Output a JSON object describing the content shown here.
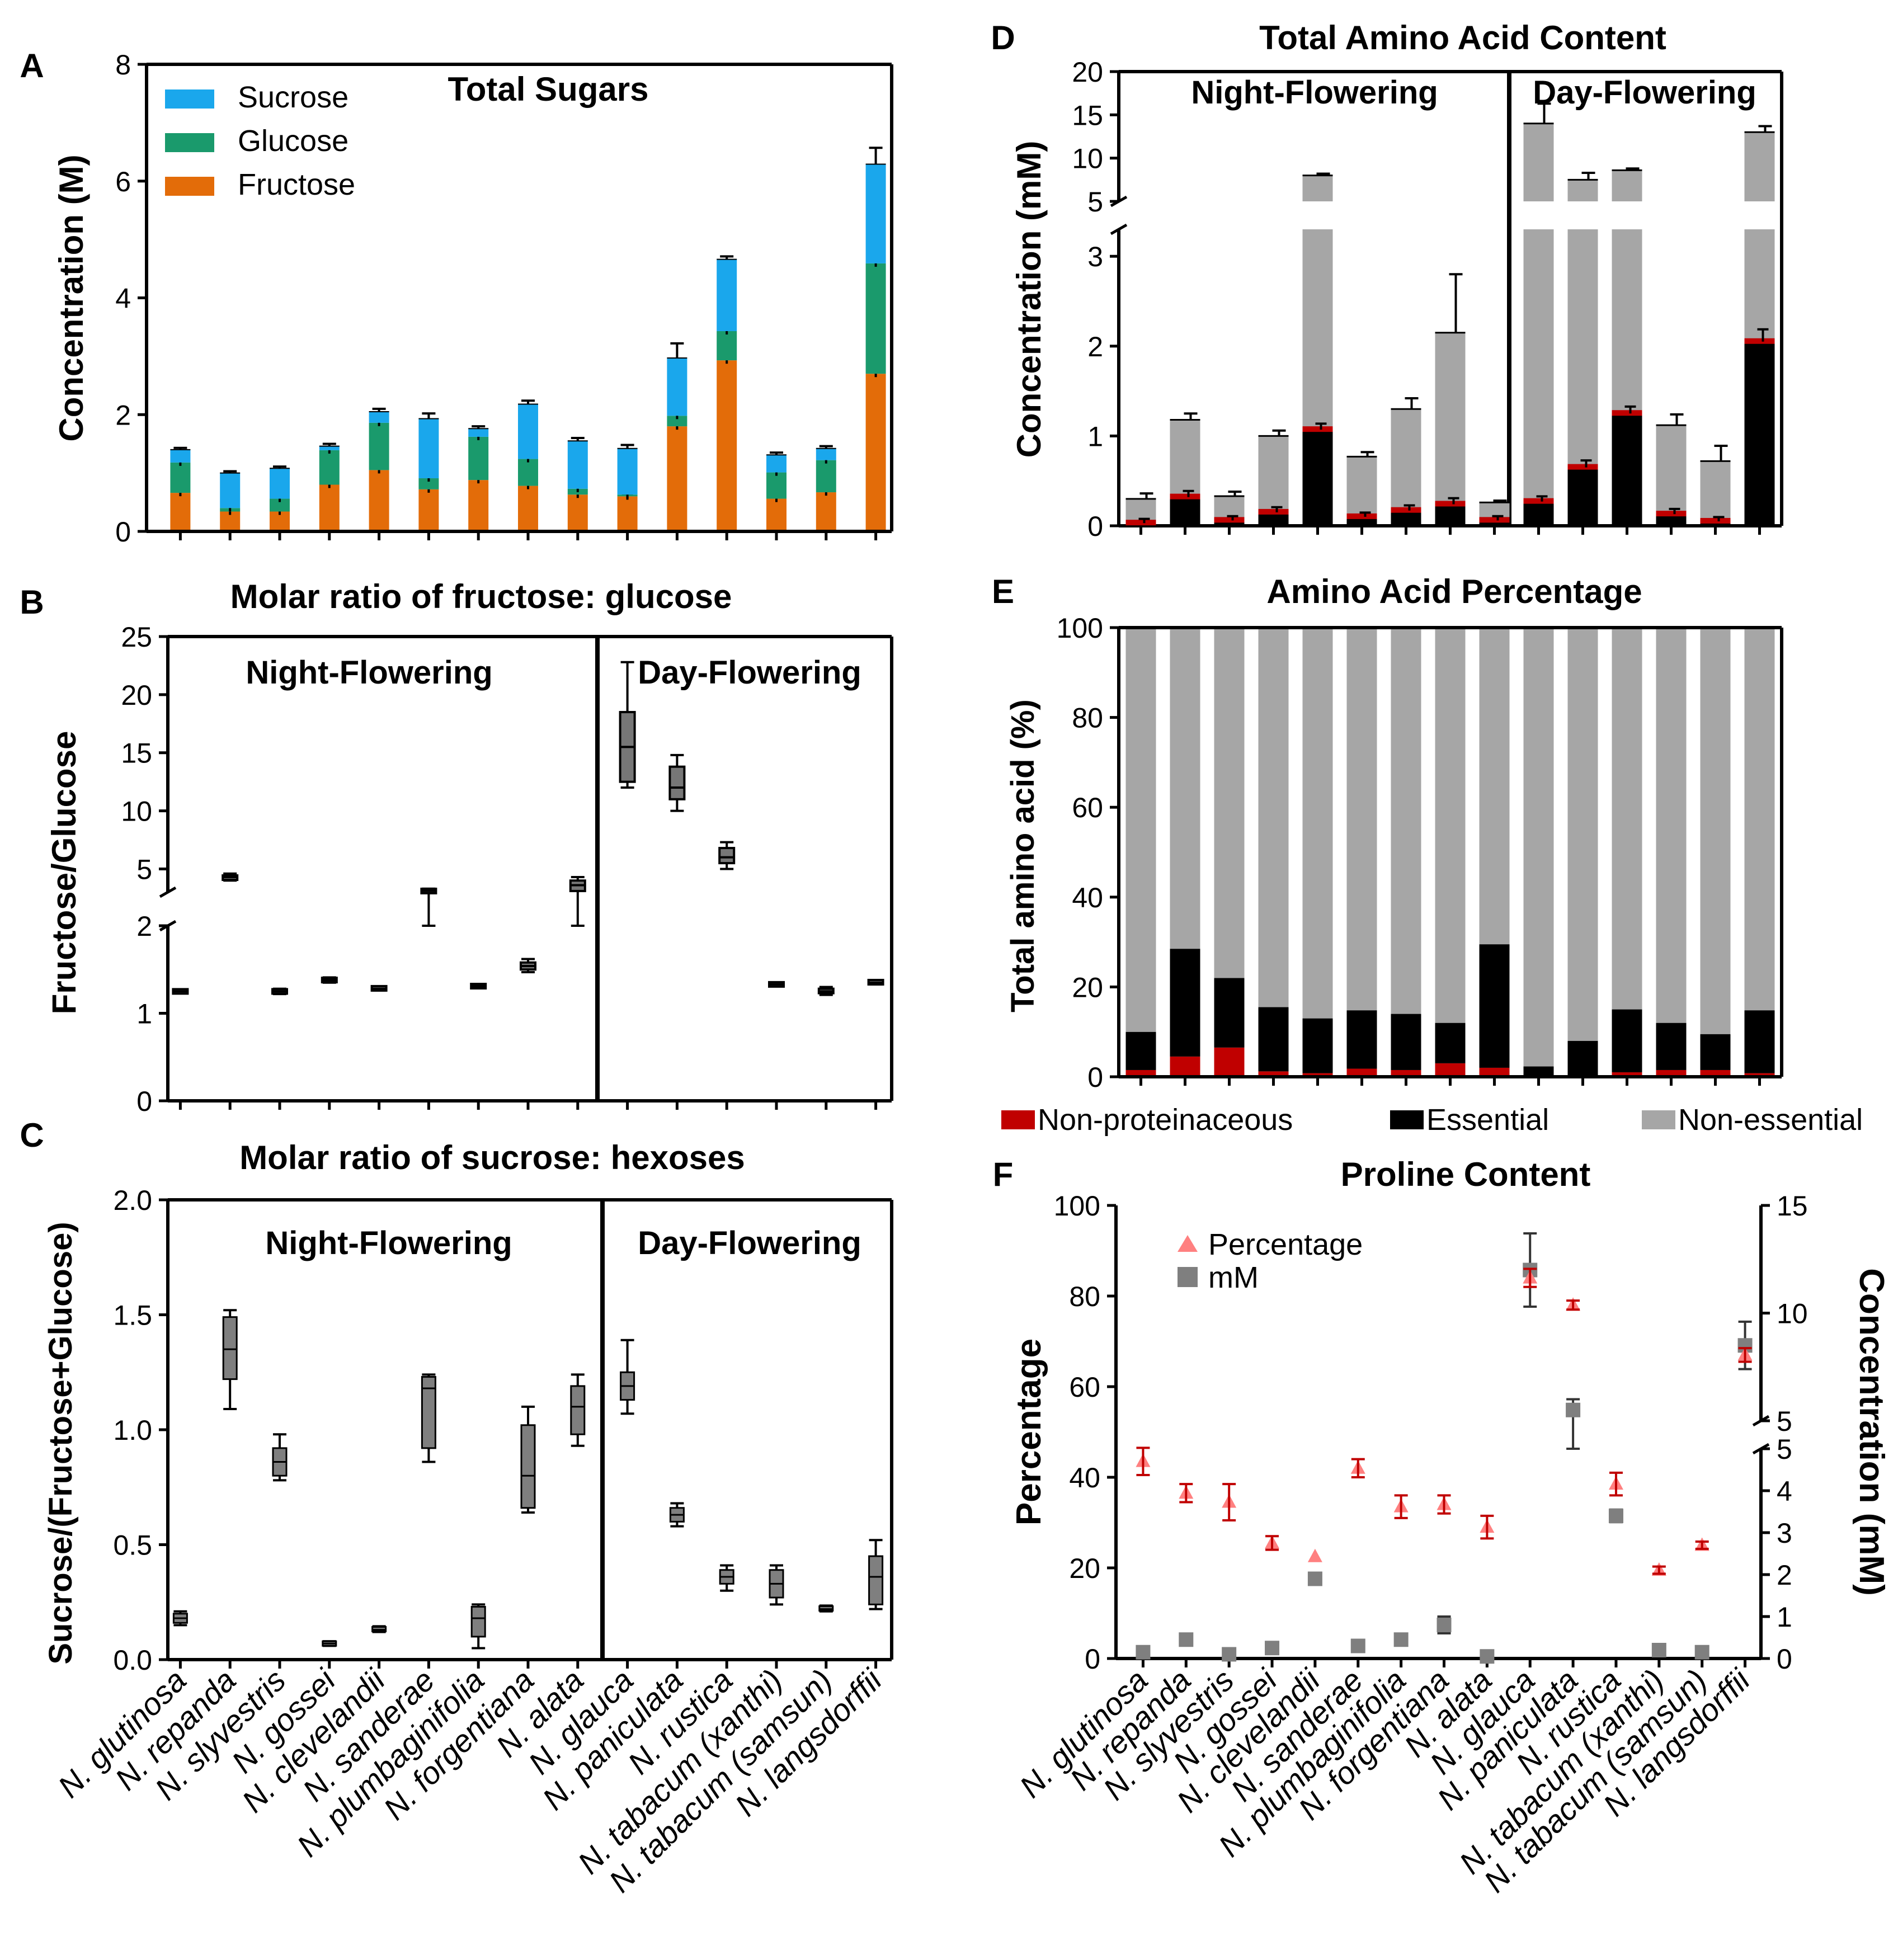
{
  "species": [
    "N. glutinosa",
    "N. repanda",
    "N. slyvestris",
    "N. gossei",
    "N. clevelandii",
    "N. sanderae",
    "N. plumbaginifolia",
    "N. forgentiana",
    "N. alata",
    "N. glauca",
    "N. paniculata",
    "N. rustica",
    "N. tabacum (xanthi)",
    "N. tabacum (samsun)",
    "N. langsdorffii"
  ],
  "groups": {
    "night": "Night-Flowering",
    "day": "Day-Flowering"
  },
  "colors": {
    "sucrose": "#1aa7ec",
    "glucose": "#1a9a6c",
    "fructose": "#e36c09",
    "nonprot": "#c00000",
    "essential": "#000000",
    "nonessential": "#a6a6a6",
    "percentage_marker": "#ff8080",
    "mm_marker": "#7f7f7f"
  },
  "chart_data": [
    {
      "panel": "A",
      "type": "bar",
      "stacked": true,
      "title": "Total Sugars",
      "ylabel": "Concentration (M)",
      "ylim": [
        0,
        8
      ],
      "yticks": [
        "0",
        "2",
        "4",
        "6",
        "8"
      ],
      "legend": [
        "Sucrose",
        "Glucose",
        "Fructose"
      ],
      "legend_position": "top-left",
      "series": [
        {
          "name": "Fructose",
          "values": [
            0.66,
            0.34,
            0.34,
            0.8,
            1.05,
            0.72,
            0.88,
            0.78,
            0.63,
            0.6,
            1.8,
            2.93,
            0.56,
            0.67,
            2.7
          ]
        },
        {
          "name": "Glucose",
          "values": [
            0.52,
            0.06,
            0.22,
            0.59,
            0.81,
            0.19,
            0.74,
            0.46,
            0.1,
            0.03,
            0.18,
            0.5,
            0.45,
            0.55,
            1.89
          ]
        },
        {
          "name": "Sucrose",
          "values": [
            0.22,
            0.6,
            0.52,
            0.07,
            0.19,
            1.02,
            0.14,
            0.94,
            0.82,
            0.79,
            0.99,
            1.23,
            0.3,
            0.2,
            1.7
          ]
        }
      ],
      "errors": [
        0.03,
        0.03,
        0.03,
        0.04,
        0.05,
        0.09,
        0.04,
        0.06,
        0.05,
        0.06,
        0.25,
        0.05,
        0.04,
        0.04,
        0.28
      ]
    },
    {
      "panel": "B",
      "type": "box",
      "title": "Molar ratio of fructose: glucose",
      "ylabel": "Fructose/Glucose",
      "ylim": [
        0,
        25
      ],
      "broken_axis": {
        "lower": [
          0,
          2
        ],
        "upper": [
          3,
          25
        ]
      },
      "yticks": [
        "0",
        "1",
        "2",
        "5",
        "10",
        "15",
        "20",
        "25"
      ],
      "boxes": [
        {
          "min": 1.23,
          "q1": 1.24,
          "median": 1.25,
          "q3": 1.26,
          "max": 1.27
        },
        {
          "min": 4.0,
          "q1": 4.1,
          "median": 4.3,
          "q3": 4.4,
          "max": 4.6
        },
        {
          "min": 1.22,
          "q1": 1.23,
          "median": 1.25,
          "q3": 1.27,
          "max": 1.28
        },
        {
          "min": 1.35,
          "q1": 1.36,
          "median": 1.38,
          "q3": 1.4,
          "max": 1.41
        },
        {
          "min": 1.26,
          "q1": 1.27,
          "median": 1.28,
          "q3": 1.3,
          "max": 1.31
        },
        {
          "min": 2.9,
          "q1": 3.0,
          "median": 3.1,
          "q3": 3.2,
          "max": 3.3
        },
        {
          "min": 1.29,
          "q1": 1.3,
          "median": 1.31,
          "q3": 1.32,
          "max": 1.33
        },
        {
          "min": 1.47,
          "q1": 1.5,
          "median": 1.54,
          "q3": 1.58,
          "max": 1.62
        },
        {
          "min": 2.9,
          "q1": 3.1,
          "median": 3.6,
          "q3": 4.0,
          "max": 4.3
        },
        {
          "min": 12.0,
          "q1": 12.5,
          "median": 15.5,
          "q3": 18.5,
          "max": 22.8
        },
        {
          "min": 10.0,
          "q1": 11.0,
          "median": 12.0,
          "q3": 13.8,
          "max": 14.8
        },
        {
          "min": 5.0,
          "q1": 5.5,
          "median": 6.0,
          "q3": 6.8,
          "max": 7.3
        },
        {
          "min": 1.31,
          "q1": 1.32,
          "median": 1.33,
          "q3": 1.34,
          "max": 1.35
        },
        {
          "min": 1.21,
          "q1": 1.23,
          "median": 1.25,
          "q3": 1.28,
          "max": 1.3
        },
        {
          "min": 1.33,
          "q1": 1.34,
          "median": 1.35,
          "q3": 1.37,
          "max": 1.38
        }
      ]
    },
    {
      "panel": "C",
      "type": "box",
      "title": "Molar ratio of sucrose: hexoses",
      "ylabel": "Sucrose/(Fructose+Glucose)",
      "ylim": [
        0,
        2.0
      ],
      "yticks": [
        "0.0",
        "0.5",
        "1.0",
        "1.5",
        "2.0"
      ],
      "boxes": [
        {
          "min": 0.15,
          "q1": 0.16,
          "median": 0.18,
          "q3": 0.2,
          "max": 0.21
        },
        {
          "min": 1.09,
          "q1": 1.22,
          "median": 1.35,
          "q3": 1.49,
          "max": 1.52
        },
        {
          "min": 0.78,
          "q1": 0.8,
          "median": 0.86,
          "q3": 0.92,
          "max": 0.98
        },
        {
          "min": 0.06,
          "q1": 0.065,
          "median": 0.07,
          "q3": 0.075,
          "max": 0.08
        },
        {
          "min": 0.12,
          "q1": 0.125,
          "median": 0.13,
          "q3": 0.14,
          "max": 0.145
        },
        {
          "min": 0.86,
          "q1": 0.92,
          "median": 1.18,
          "q3": 1.23,
          "max": 1.24
        },
        {
          "min": 0.05,
          "q1": 0.1,
          "median": 0.18,
          "q3": 0.23,
          "max": 0.24
        },
        {
          "min": 0.64,
          "q1": 0.66,
          "median": 0.8,
          "q3": 1.02,
          "max": 1.1
        },
        {
          "min": 0.93,
          "q1": 0.98,
          "median": 1.1,
          "q3": 1.19,
          "max": 1.24
        },
        {
          "min": 1.07,
          "q1": 1.13,
          "median": 1.19,
          "q3": 1.25,
          "max": 1.39
        },
        {
          "min": 0.58,
          "q1": 0.6,
          "median": 0.63,
          "q3": 0.66,
          "max": 0.68
        },
        {
          "min": 0.3,
          "q1": 0.33,
          "median": 0.36,
          "q3": 0.39,
          "max": 0.41
        },
        {
          "min": 0.24,
          "q1": 0.27,
          "median": 0.33,
          "q3": 0.39,
          "max": 0.41
        },
        {
          "min": 0.21,
          "q1": 0.215,
          "median": 0.22,
          "q3": 0.23,
          "max": 0.235
        },
        {
          "min": 0.22,
          "q1": 0.24,
          "median": 0.36,
          "q3": 0.45,
          "max": 0.52
        }
      ]
    },
    {
      "panel": "D",
      "type": "bar",
      "stacked": true,
      "title": "Total Amino Acid Content",
      "ylabel": "Concentration (mM)",
      "broken_axis": {
        "lower": [
          0,
          3.3
        ],
        "upper": [
          5,
          20
        ]
      },
      "yticks": [
        "0",
        "1",
        "2",
        "3",
        "5",
        "10",
        "15",
        "20"
      ],
      "totals": [
        0.3,
        1.18,
        0.33,
        1.0,
        8.0,
        0.77,
        1.3,
        2.15,
        0.26,
        14.0,
        7.5,
        8.6,
        1.12,
        0.72,
        13.0
      ],
      "total_errors": [
        0.06,
        0.07,
        0.05,
        0.06,
        0.2,
        0.05,
        0.12,
        0.65,
        0.02,
        2.3,
        0.8,
        0.2,
        0.12,
        0.17,
        0.7
      ],
      "essential": [
        0.03,
        0.32,
        0.06,
        0.15,
        1.07,
        0.1,
        0.17,
        0.24,
        0.06,
        0.27,
        0.65,
        1.25,
        0.13,
        0.05,
        2.05
      ],
      "essential_errors": [
        0.01,
        0.03,
        0.01,
        0.02,
        0.03,
        0.01,
        0.02,
        0.03,
        0.01,
        0.02,
        0.04,
        0.04,
        0.02,
        0.01,
        0.1
      ]
    },
    {
      "panel": "E",
      "type": "bar",
      "stacked": true,
      "title": "Amino Acid Percentage",
      "ylabel": "Total amino acid (%)",
      "ylim": [
        0,
        100
      ],
      "yticks": [
        "0",
        "20",
        "40",
        "60",
        "80",
        "100"
      ],
      "legend": [
        "Non-proteinaceous",
        "Essential",
        "Non-essential"
      ],
      "legend_position": "bottom",
      "series": [
        {
          "name": "Non-proteinaceous",
          "values": [
            1.5,
            4.5,
            6.5,
            1.2,
            0.8,
            1.8,
            1.5,
            3.0,
            2.0,
            0.3,
            0.3,
            1.0,
            1.5,
            1.5,
            0.8
          ]
        },
        {
          "name": "Essential",
          "values": [
            8.5,
            24.0,
            15.5,
            14.3,
            12.2,
            13.0,
            12.5,
            9.0,
            27.5,
            2.0,
            7.7,
            14.0,
            10.5,
            8.0,
            14.0
          ]
        },
        {
          "name": "Non-essential",
          "values": [
            90.0,
            71.5,
            78.0,
            84.5,
            87.0,
            85.2,
            86.0,
            88.0,
            70.5,
            97.7,
            92.0,
            85.0,
            88.0,
            90.5,
            85.2
          ]
        }
      ]
    },
    {
      "panel": "F",
      "type": "scatter",
      "title": "Proline Content",
      "ylabel": "Percentage",
      "ylabel_right": "Concentration (mM)",
      "ylim": [
        0,
        100
      ],
      "yticks": [
        "0",
        "20",
        "40",
        "60",
        "80",
        "100"
      ],
      "yticks_right": [
        "0",
        "1",
        "2",
        "3",
        "4",
        "5",
        "5",
        "10",
        "15"
      ],
      "legend": [
        "Percentage",
        "mM"
      ],
      "legend_position": "top-left",
      "percentage": [
        43.5,
        36.5,
        34.5,
        25.5,
        22.5,
        42.0,
        33.5,
        34.0,
        29.0,
        84.0,
        78.0,
        38.5,
        19.5,
        25.0,
        67.0
      ],
      "percentage_errors": [
        3.0,
        2.0,
        4.0,
        1.5,
        0.0,
        2.0,
        2.5,
        2.0,
        2.5,
        2.0,
        1.0,
        2.5,
        0.8,
        0.8,
        1.5
      ],
      "mm": [
        0.15,
        0.45,
        0.1,
        0.25,
        1.9,
        0.3,
        0.45,
        0.8,
        0.05,
        12.0,
        5.5,
        3.4,
        0.2,
        0.15,
        8.5
      ],
      "mm_errors": [
        0.05,
        0.07,
        0.05,
        0.06,
        0.1,
        0.06,
        0.06,
        0.2,
        0.02,
        1.7,
        0.5,
        0.15,
        0.06,
        0.05,
        1.1
      ]
    }
  ],
  "panels": {
    "A": {
      "letter": "A",
      "title": "Total Sugars",
      "ylabel": "Concentration (M)",
      "ticks": [
        "0",
        "2",
        "4",
        "6",
        "8"
      ],
      "legend": [
        "Sucrose",
        "Glucose",
        "Fructose"
      ]
    },
    "B": {
      "letter": "B",
      "title": "Molar ratio of fructose: glucose",
      "ylabel": "Fructose/Glucose",
      "ticks": [
        "0",
        "1",
        "2",
        "5",
        "10",
        "15",
        "20",
        "25"
      ]
    },
    "C": {
      "letter": "C",
      "title": "Molar ratio of sucrose: hexoses",
      "ylabel": "Sucrose/(Fructose+Glucose)",
      "ticks": [
        "0.0",
        "0.5",
        "1.0",
        "1.5",
        "2.0"
      ]
    },
    "D": {
      "letter": "D",
      "title": "Total Amino Acid Content",
      "ylabel": "Concentration (mM)",
      "ticks": [
        "0",
        "1",
        "2",
        "3",
        "5",
        "10",
        "15",
        "20"
      ]
    },
    "E": {
      "letter": "E",
      "title": "Amino Acid Percentage",
      "ylabel": "Total amino acid (%)",
      "ticks": [
        "0",
        "20",
        "40",
        "60",
        "80",
        "100"
      ],
      "legend": [
        "Non-proteinaceous",
        "Essential",
        "Non-essential"
      ]
    },
    "F": {
      "letter": "F",
      "title": "Proline Content",
      "ylabel": "Percentage",
      "ylabel_right": "Concentration (mM)",
      "ticks": [
        "0",
        "20",
        "40",
        "60",
        "80",
        "100"
      ],
      "ticks_right": [
        "0",
        "1",
        "2",
        "3",
        "4",
        "5",
        "5",
        "10",
        "15"
      ],
      "legend": [
        "Percentage",
        "mM"
      ]
    }
  }
}
